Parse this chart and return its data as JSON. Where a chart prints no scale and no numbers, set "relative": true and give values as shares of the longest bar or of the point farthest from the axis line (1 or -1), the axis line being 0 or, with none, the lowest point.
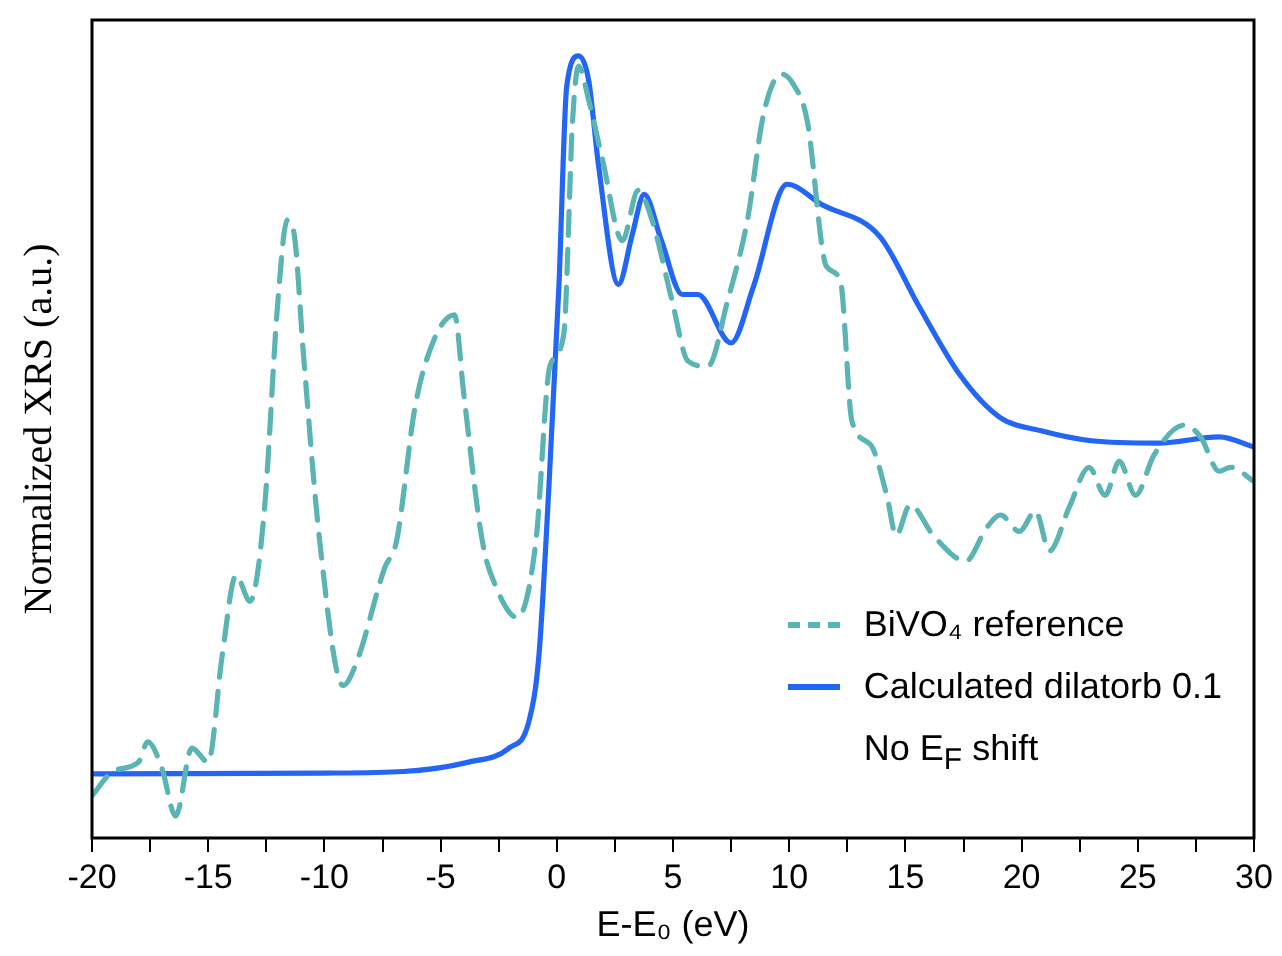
{
  "chart_data": {
    "type": "line",
    "relative": true,
    "xlabel": "E-E₀ (eV)",
    "ylabel": "Normalized XRS (a.u.)",
    "xlim": [
      -20,
      30
    ],
    "xticks": [
      -20,
      {
        "value": -17.5,
        "label": null
      },
      -15,
      {
        "value": -12.5,
        "label": null
      },
      -10,
      {
        "value": -7.5,
        "label": null
      },
      -5,
      {
        "value": -2.5,
        "label": null
      },
      0,
      {
        "value": 2.5,
        "label": null
      },
      5,
      {
        "value": 7.5,
        "label": null
      },
      10,
      {
        "value": 12.5,
        "label": null
      },
      15,
      {
        "value": 17.5,
        "label": null
      },
      20,
      {
        "value": 22.5,
        "label": null
      },
      25,
      {
        "value": 27.5,
        "label": null
      },
      30
    ],
    "tick_labels": "x",
    "grid": false,
    "legend": "bottom right",
    "marker": "none",
    "annotations": [
      "No E$_{F}$ shift"
    ],
    "series": [
      {
        "name": "BiVO₄ reference",
        "color": "#5ab4b4",
        "line_style": "dashed",
        "x": [
          -20,
          -19.1,
          -18.0,
          -17.6,
          -17.0,
          -16.4,
          -15.7,
          -15.0,
          -14.4,
          -13.8,
          -13.2,
          -12.6,
          -12.0,
          -11.6,
          -11.3,
          -10.9,
          -10.2,
          -9.2,
          -8.6,
          -7.4,
          -6.9,
          -6.1,
          -5.3,
          -4.4,
          -4.0,
          -3.2,
          -2.6,
          -1.7,
          -0.9,
          -0.3,
          0.3,
          0.68,
          0.94,
          1.37,
          1.97,
          2.82,
          3.5,
          4.1,
          4.96,
          5.64,
          6.5,
          7.35,
          8.2,
          8.9,
          9.66,
          10.17,
          10.77,
          11.6,
          12.2,
          12.7,
          13.5,
          14.2,
          14.6,
          15.2,
          16.2,
          17.6,
          18.5,
          19.1,
          19.9,
          20.6,
          21.2,
          22.05,
          22.9,
          23.6,
          24.2,
          24.9,
          25.7,
          27.0,
          27.7,
          28.5,
          29.0,
          30
        ],
        "values": [
          0.054,
          0.085,
          0.097,
          0.123,
          0.09,
          0.028,
          0.115,
          0.097,
          0.233,
          0.336,
          0.303,
          0.413,
          0.687,
          0.79,
          0.772,
          0.618,
          0.379,
          0.195,
          0.226,
          0.346,
          0.379,
          0.551,
          0.636,
          0.669,
          0.567,
          0.379,
          0.32,
          0.282,
          0.379,
          0.603,
          0.644,
          0.918,
          0.987,
          0.944,
          0.867,
          0.764,
          0.828,
          0.79,
          0.687,
          0.61,
          0.603,
          0.687,
          0.79,
          0.926,
          0.977,
          0.964,
          0.918,
          0.731,
          0.713,
          0.533,
          0.503,
          0.438,
          0.387,
          0.426,
          0.387,
          0.354,
          0.397,
          0.413,
          0.392,
          0.418,
          0.367,
          0.423,
          0.474,
          0.438,
          0.482,
          0.438,
          0.49,
          0.528,
          0.513,
          0.469,
          0.474,
          0.456
        ]
      },
      {
        "name": "Calculated dilatorb 0.1",
        "color": "#2366f5",
        "line_style": "solid",
        "x": [
          -20,
          -10,
          -6.6,
          -3.8,
          -2.05,
          -1.2,
          -0.77,
          -0.34,
          0.09,
          0.43,
          0.94,
          1.37,
          1.8,
          2.65,
          3.25,
          3.76,
          4.5,
          5.4,
          6.07,
          7.5,
          8.46,
          9.9,
          11.4,
          13.9,
          15.6,
          17.35,
          19.06,
          20.8,
          23.0,
          25.9,
          28.5,
          30
        ],
        "values": [
          0.082,
          0.083,
          0.085,
          0.097,
          0.115,
          0.149,
          0.233,
          0.449,
          0.705,
          0.962,
          1.0,
          0.969,
          0.859,
          0.708,
          0.772,
          0.823,
          0.764,
          0.695,
          0.695,
          0.633,
          0.705,
          0.836,
          0.81,
          0.769,
          0.679,
          0.592,
          0.538,
          0.521,
          0.508,
          0.505,
          0.513,
          0.5
        ]
      }
    ]
  }
}
